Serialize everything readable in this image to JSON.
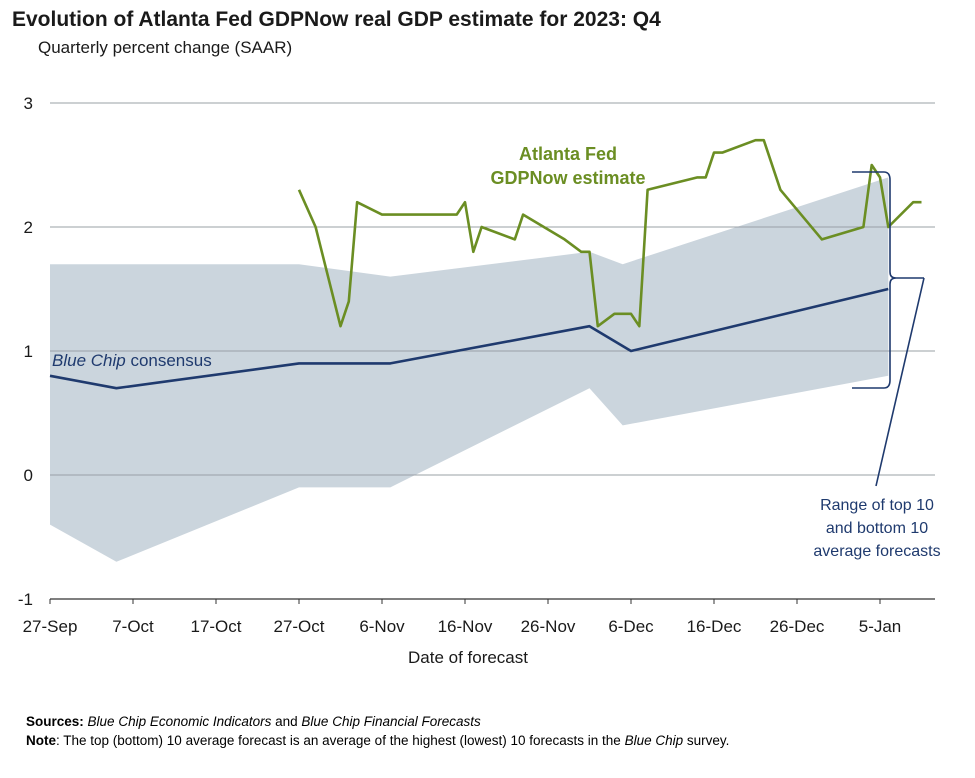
{
  "title": "Evolution of Atlanta Fed GDPNow real GDP estimate for 2023: Q4",
  "subtitle": "Quarterly percent change (SAAR)",
  "chart_data": {
    "type": "line",
    "xlabel": "Date of forecast",
    "ylabel": "",
    "ylim": [
      -1,
      3
    ],
    "yticks": [
      3,
      2,
      1,
      0,
      -1
    ],
    "x_tick_labels": [
      "27-Sep",
      "7-Oct",
      "17-Oct",
      "27-Oct",
      "6-Nov",
      "16-Nov",
      "26-Nov",
      "6-Dec",
      "16-Dec",
      "26-Dec",
      "5-Jan"
    ],
    "grid": "horizontal",
    "series": [
      {
        "name": "Atlanta Fed GDPNow estimate",
        "color": "#6b8e23",
        "points": [
          [
            "2023-10-27",
            2.3
          ],
          [
            "2023-10-29",
            2.0
          ],
          [
            "2023-11-01",
            1.2
          ],
          [
            "2023-11-02",
            1.4
          ],
          [
            "2023-11-03",
            2.2
          ],
          [
            "2023-11-06",
            2.1
          ],
          [
            "2023-11-15",
            2.1
          ],
          [
            "2023-11-16",
            2.2
          ],
          [
            "2023-11-17",
            1.8
          ],
          [
            "2023-11-18",
            2.0
          ],
          [
            "2023-11-22",
            1.9
          ],
          [
            "2023-11-23",
            2.1
          ],
          [
            "2023-11-28",
            1.9
          ],
          [
            "2023-11-30",
            1.8
          ],
          [
            "2023-12-01",
            1.8
          ],
          [
            "2023-12-02",
            1.2
          ],
          [
            "2023-12-04",
            1.3
          ],
          [
            "2023-12-06",
            1.3
          ],
          [
            "2023-12-07",
            1.2
          ],
          [
            "2023-12-08",
            2.3
          ],
          [
            "2023-12-14",
            2.4
          ],
          [
            "2023-12-15",
            2.4
          ],
          [
            "2023-12-16",
            2.6
          ],
          [
            "2023-12-17",
            2.6
          ],
          [
            "2023-12-21",
            2.7
          ],
          [
            "2023-12-22",
            2.7
          ],
          [
            "2023-12-24",
            2.3
          ],
          [
            "2023-12-29",
            1.9
          ],
          [
            "2024-01-03",
            2.0
          ],
          [
            "2024-01-04",
            2.5
          ],
          [
            "2024-01-05",
            2.4
          ],
          [
            "2024-01-06",
            2.0
          ],
          [
            "2024-01-09",
            2.2
          ],
          [
            "2024-01-10",
            2.2
          ]
        ]
      },
      {
        "name": "Blue Chip consensus",
        "color": "#1f3a6e",
        "points": [
          [
            "2023-09-27",
            0.8
          ],
          [
            "2023-10-05",
            0.7
          ],
          [
            "2023-10-27",
            0.9
          ],
          [
            "2023-11-07",
            0.9
          ],
          [
            "2023-12-01",
            1.2
          ],
          [
            "2023-12-06",
            1.0
          ],
          [
            "2024-01-06",
            1.5
          ]
        ]
      }
    ],
    "band": {
      "name": "Range of top 10 and bottom 10 average forecasts",
      "color": "#cbd5dd",
      "upper": [
        [
          "2023-09-27",
          1.7
        ],
        [
          "2023-10-27",
          1.7
        ],
        [
          "2023-11-07",
          1.6
        ],
        [
          "2023-12-01",
          1.8
        ],
        [
          "2023-12-05",
          1.7
        ],
        [
          "2024-01-06",
          2.4
        ]
      ],
      "lower": [
        [
          "2023-09-27",
          -0.4
        ],
        [
          "2023-10-05",
          -0.7
        ],
        [
          "2023-10-27",
          -0.1
        ],
        [
          "2023-11-07",
          -0.1
        ],
        [
          "2023-12-01",
          0.7
        ],
        [
          "2023-12-05",
          0.4
        ],
        [
          "2024-01-06",
          0.8
        ]
      ]
    },
    "annotations": {
      "gdpnow_line1": "Atlanta Fed",
      "gdpnow_line2": "GDPNow estimate",
      "bluechip_italic": "Blue Chip",
      "bluechip_rest": " consensus",
      "range_line1": "Range of top 10",
      "range_line2": "and bottom 10",
      "range_line3": "average forecasts"
    }
  },
  "footer": {
    "sources_label": "Sources:",
    "sources_text_1": "Blue Chip Economic Indicators",
    "sources_and": " and ",
    "sources_text_2": "Blue Chip Financial Forecasts",
    "note_label": "Note",
    "note_text": ": The top (bottom) 10 average forecast is an average of the highest (lowest) 10 forecasts in the ",
    "note_italic": "Blue Chip",
    "note_end": " survey."
  }
}
